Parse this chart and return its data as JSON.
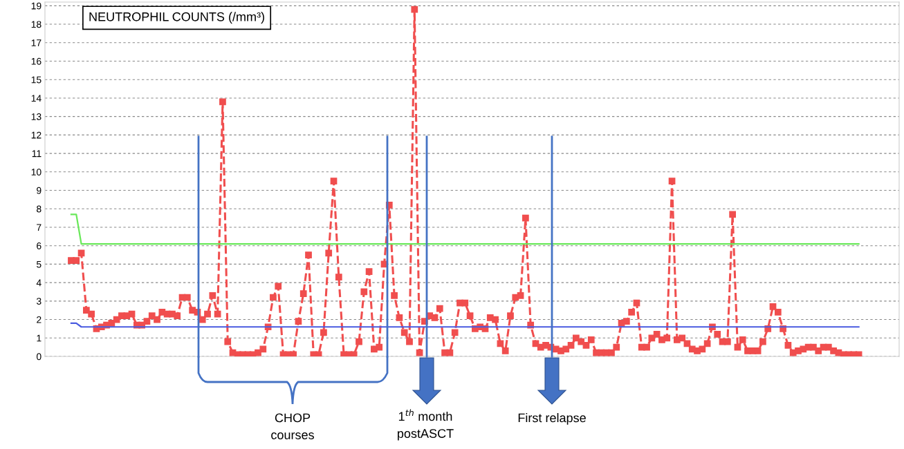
{
  "chart_data": {
    "type": "line",
    "title": "NEUTROPHIL COUNTS (/mm³)",
    "categories": [
      null,
      null,
      null,
      null,
      null,
      null,
      null,
      null,
      null,
      null,
      null,
      null,
      null,
      null,
      null,
      null,
      null,
      null,
      null,
      null,
      null,
      null,
      null,
      null,
      null,
      null,
      null,
      null,
      null,
      null,
      null,
      null,
      null,
      null,
      null,
      null,
      null,
      null,
      null,
      null,
      null,
      null,
      null,
      null,
      null,
      null,
      null,
      null,
      null,
      null,
      null,
      null,
      null,
      null,
      null,
      null,
      null,
      null,
      null,
      null,
      null,
      null,
      null,
      null,
      null,
      null,
      null,
      null,
      null,
      null,
      null,
      null,
      null,
      null,
      null,
      null,
      null,
      null,
      null,
      null,
      null,
      null,
      null,
      null,
      null,
      null,
      null,
      null,
      null,
      null,
      null,
      null,
      null,
      null,
      null,
      null,
      null,
      null,
      null,
      null,
      null,
      null,
      null,
      null,
      null,
      null,
      null,
      null,
      null,
      null,
      null,
      null,
      null,
      null,
      null,
      null,
      null,
      null,
      null,
      null,
      null,
      null,
      null,
      null,
      null,
      null,
      null,
      null,
      null,
      null,
      null,
      null,
      null,
      null,
      null,
      null,
      null,
      null,
      null,
      null,
      null,
      null,
      null,
      null,
      null,
      null,
      null,
      null,
      null,
      null,
      null,
      null,
      null,
      null,
      null,
      null,
      null
    ],
    "series": [
      {
        "color": "#f04e4e",
        "marker": "square",
        "line_style": "dashed",
        "values": [
          5.2,
          5.2,
          5.6,
          2.5,
          2.3,
          1.5,
          1.6,
          1.7,
          1.8,
          2.0,
          2.2,
          2.2,
          2.3,
          1.7,
          1.7,
          1.9,
          2.2,
          2.0,
          2.4,
          2.3,
          2.3,
          2.2,
          3.2,
          3.2,
          2.5,
          2.4,
          2.0,
          2.3,
          3.3,
          2.3,
          13.8,
          0.8,
          0.2,
          0.1,
          0.1,
          0.1,
          0.1,
          0.2,
          0.4,
          1.6,
          3.2,
          3.8,
          0.1,
          0.1,
          0.1,
          1.9,
          3.4,
          5.5,
          0.1,
          0.1,
          1.3,
          5.6,
          9.5,
          4.3,
          0.1,
          0.1,
          0.1,
          0.8,
          3.5,
          4.6,
          0.4,
          0.5,
          5.0,
          8.2,
          3.3,
          2.1,
          1.3,
          0.8,
          18.8,
          0.2,
          1.9,
          2.2,
          2.1,
          2.6,
          0.2,
          0.2,
          1.3,
          2.9,
          2.9,
          2.2,
          1.5,
          1.6,
          1.5,
          2.1,
          2.0,
          0.7,
          0.3,
          2.2,
          3.2,
          3.3,
          7.5,
          1.7,
          0.7,
          0.5,
          0.6,
          0.5,
          0.4,
          0.3,
          0.4,
          0.6,
          1.0,
          0.8,
          0.6,
          0.9,
          0.2,
          0.2,
          0.2,
          0.2,
          0.5,
          1.8,
          1.9,
          2.4,
          2.9,
          0.5,
          0.5,
          1.0,
          1.2,
          0.9,
          1.0,
          9.5,
          0.9,
          1.0,
          0.7,
          0.4,
          0.3,
          0.4,
          0.7,
          1.6,
          1.2,
          0.8,
          0.8,
          7.7,
          0.5,
          0.9,
          0.3,
          0.3,
          0.3,
          0.8,
          1.5,
          2.7,
          2.4,
          1.5,
          0.6,
          0.2,
          0.3,
          0.4,
          0.5,
          0.5,
          0.3,
          0.5,
          0.5,
          0.3,
          0.2,
          0.1,
          0.1,
          0.1,
          0.1
        ]
      },
      {
        "color": "#6ae85a",
        "marker": "none",
        "line_style": "solid",
        "values": [
          7.7,
          7.7,
          6.1,
          6.1,
          6.1,
          6.1,
          6.1,
          6.1,
          6.1,
          6.1,
          6.1,
          6.1,
          6.1,
          6.1,
          6.1,
          6.1,
          6.1,
          6.1,
          6.1,
          6.1,
          6.1,
          6.1,
          6.1,
          6.1,
          6.1,
          6.1,
          6.1,
          6.1,
          6.1,
          6.1,
          6.1,
          6.1,
          6.1,
          6.1,
          6.1,
          6.1,
          6.1,
          6.1,
          6.1,
          6.1,
          6.1,
          6.1,
          6.1,
          6.1,
          6.1,
          6.1,
          6.1,
          6.1,
          6.1,
          6.1,
          6.1,
          6.1,
          6.1,
          6.1,
          6.1,
          6.1,
          6.1,
          6.1,
          6.1,
          6.1,
          6.1,
          6.1,
          6.1,
          6.1,
          6.1,
          6.1,
          6.1,
          6.1,
          6.1,
          6.1,
          6.1,
          6.1,
          6.1,
          6.1,
          6.1,
          6.1,
          6.1,
          6.1,
          6.1,
          6.1,
          6.1,
          6.1,
          6.1,
          6.1,
          6.1,
          6.1,
          6.1,
          6.1,
          6.1,
          6.1,
          6.1,
          6.1,
          6.1,
          6.1,
          6.1,
          6.1,
          6.1,
          6.1,
          6.1,
          6.1,
          6.1,
          6.1,
          6.1,
          6.1,
          6.1,
          6.1,
          6.1,
          6.1,
          6.1,
          6.1,
          6.1,
          6.1,
          6.1,
          6.1,
          6.1,
          6.1,
          6.1,
          6.1,
          6.1,
          6.1,
          6.1,
          6.1,
          6.1,
          6.1,
          6.1,
          6.1,
          6.1,
          6.1,
          6.1,
          6.1,
          6.1,
          6.1,
          6.1,
          6.1,
          6.1,
          6.1,
          6.1,
          6.1,
          6.1,
          6.1,
          6.1,
          6.1,
          6.1,
          6.1,
          6.1,
          6.1,
          6.1,
          6.1,
          6.1,
          6.1,
          6.1,
          6.1,
          6.1,
          6.1,
          6.1,
          6.1,
          6.1
        ]
      },
      {
        "color": "#4a5be0",
        "marker": "none",
        "line_style": "solid",
        "values": [
          1.8,
          1.8,
          1.6,
          1.6,
          1.6,
          1.6,
          1.6,
          1.6,
          1.6,
          1.6,
          1.6,
          1.6,
          1.6,
          1.6,
          1.6,
          1.6,
          1.6,
          1.6,
          1.6,
          1.6,
          1.6,
          1.6,
          1.6,
          1.6,
          1.6,
          1.6,
          1.6,
          1.6,
          1.6,
          1.6,
          1.6,
          1.6,
          1.6,
          1.6,
          1.6,
          1.6,
          1.6,
          1.6,
          1.6,
          1.6,
          1.6,
          1.6,
          1.6,
          1.6,
          1.6,
          1.6,
          1.6,
          1.6,
          1.6,
          1.6,
          1.6,
          1.6,
          1.6,
          1.6,
          1.6,
          1.6,
          1.6,
          1.6,
          1.6,
          1.6,
          1.6,
          1.6,
          1.6,
          1.6,
          1.6,
          1.6,
          1.6,
          1.6,
          1.6,
          1.6,
          1.6,
          1.6,
          1.6,
          1.6,
          1.6,
          1.6,
          1.6,
          1.6,
          1.6,
          1.6,
          1.6,
          1.6,
          1.6,
          1.6,
          1.6,
          1.6,
          1.6,
          1.6,
          1.6,
          1.6,
          1.6,
          1.6,
          1.6,
          1.6,
          1.6,
          1.6,
          1.6,
          1.6,
          1.6,
          1.6,
          1.6,
          1.6,
          1.6,
          1.6,
          1.6,
          1.6,
          1.6,
          1.6,
          1.6,
          1.6,
          1.6,
          1.6,
          1.6,
          1.6,
          1.6,
          1.6,
          1.6,
          1.6,
          1.6,
          1.6,
          1.6,
          1.6,
          1.6,
          1.6,
          1.6,
          1.6,
          1.6,
          1.6,
          1.6,
          1.6,
          1.6,
          1.6,
          1.6,
          1.6,
          1.6,
          1.6,
          1.6,
          1.6,
          1.6,
          1.6,
          1.6,
          1.6,
          1.6,
          1.6,
          1.6,
          1.6,
          1.6,
          1.6,
          1.6,
          1.6,
          1.6,
          1.6,
          1.6,
          1.6,
          1.6,
          1.6,
          1.6
        ]
      }
    ],
    "ylim": [
      0,
      19.2
    ],
    "yticks": [
      0,
      1,
      2,
      3,
      4,
      5,
      6,
      7,
      8,
      9,
      10,
      11,
      12,
      13,
      14,
      15,
      16,
      17,
      18,
      19
    ],
    "grid": "y",
    "tick_labels": "y",
    "annotations": [
      "CHOP\ncourses",
      "1$^{th}$ month\npostASCT",
      "First relapse"
    ]
  }
}
